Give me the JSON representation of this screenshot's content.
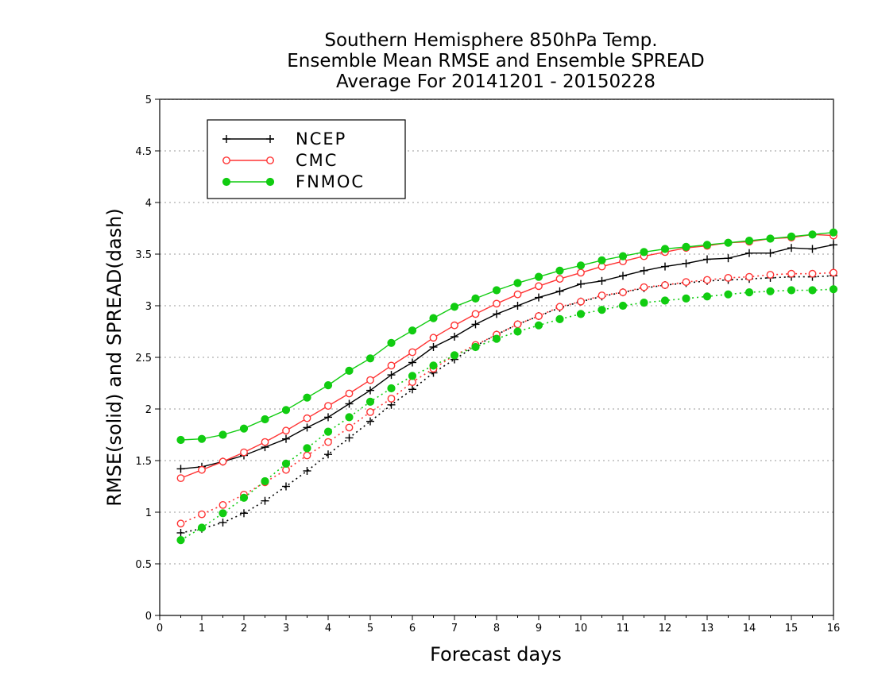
{
  "chart_data": {
    "type": "line",
    "title": [
      "Southern Hemisphere 850hPa Temp.",
      "Ensemble Mean RMSE and Ensemble SPREAD",
      "Average For 20141201 - 20150228"
    ],
    "xlabel": "Forecast days",
    "ylabel": "RMSE(solid) and SPREAD(dash)",
    "xlim": [
      0,
      16
    ],
    "ylim": [
      0,
      5
    ],
    "xticks": [
      "0",
      "1",
      "2",
      "3",
      "4",
      "5",
      "6",
      "7",
      "8",
      "9",
      "10",
      "11",
      "12",
      "13",
      "14",
      "15",
      "16"
    ],
    "yticks": [
      "0",
      "0.5",
      "1",
      "1.5",
      "2",
      "2.5",
      "3",
      "3.5",
      "4",
      "4.5",
      "5"
    ],
    "grid": "horizontal dotted",
    "legend_position": "top-left",
    "x": [
      0.5,
      1,
      1.5,
      2,
      2.5,
      3,
      3.5,
      4,
      4.5,
      5,
      5.5,
      6,
      6.5,
      7,
      7.5,
      8,
      8.5,
      9,
      9.5,
      10,
      10.5,
      11,
      11.5,
      12,
      12.5,
      13,
      13.5,
      14,
      14.5,
      15,
      15.5,
      16
    ],
    "series": [
      {
        "name": "NCEP",
        "color": "#000000",
        "marker": "plus",
        "rmse": [
          1.42,
          1.44,
          1.49,
          1.55,
          1.63,
          1.71,
          1.82,
          1.92,
          2.05,
          2.18,
          2.33,
          2.45,
          2.6,
          2.7,
          2.82,
          2.92,
          3.0,
          3.08,
          3.14,
          3.21,
          3.24,
          3.29,
          3.34,
          3.38,
          3.41,
          3.45,
          3.46,
          3.51,
          3.51,
          3.56,
          3.55,
          3.59
        ],
        "spread": [
          0.8,
          0.84,
          0.9,
          0.99,
          1.11,
          1.25,
          1.4,
          1.56,
          1.72,
          1.88,
          2.04,
          2.19,
          2.35,
          2.48,
          2.61,
          2.72,
          2.82,
          2.9,
          2.98,
          3.04,
          3.09,
          3.13,
          3.17,
          3.2,
          3.22,
          3.24,
          3.25,
          3.26,
          3.27,
          3.28,
          3.28,
          3.29
        ]
      },
      {
        "name": "CMC",
        "color": "#ff3333",
        "marker": "open-circle",
        "rmse": [
          1.33,
          1.41,
          1.49,
          1.58,
          1.68,
          1.79,
          1.91,
          2.03,
          2.15,
          2.28,
          2.42,
          2.55,
          2.69,
          2.81,
          2.92,
          3.02,
          3.11,
          3.19,
          3.26,
          3.32,
          3.38,
          3.43,
          3.48,
          3.52,
          3.56,
          3.58,
          3.61,
          3.62,
          3.65,
          3.66,
          3.69,
          3.68
        ],
        "spread": [
          0.89,
          0.98,
          1.07,
          1.17,
          1.29,
          1.41,
          1.55,
          1.68,
          1.82,
          1.97,
          2.1,
          2.26,
          2.39,
          2.52,
          2.62,
          2.72,
          2.82,
          2.9,
          2.99,
          3.04,
          3.1,
          3.13,
          3.18,
          3.2,
          3.23,
          3.25,
          3.27,
          3.28,
          3.3,
          3.31,
          3.31,
          3.32
        ]
      },
      {
        "name": "FNMOC",
        "color": "#11cc11",
        "marker": "filled-circle",
        "rmse": [
          1.7,
          1.71,
          1.75,
          1.81,
          1.9,
          1.99,
          2.11,
          2.23,
          2.37,
          2.49,
          2.64,
          2.76,
          2.88,
          2.99,
          3.07,
          3.15,
          3.22,
          3.28,
          3.34,
          3.39,
          3.44,
          3.48,
          3.52,
          3.55,
          3.57,
          3.59,
          3.61,
          3.63,
          3.65,
          3.67,
          3.69,
          3.71
        ],
        "spread": [
          0.73,
          0.85,
          0.99,
          1.14,
          1.3,
          1.47,
          1.62,
          1.78,
          1.92,
          2.07,
          2.2,
          2.32,
          2.42,
          2.52,
          2.6,
          2.68,
          2.75,
          2.81,
          2.87,
          2.92,
          2.96,
          3.0,
          3.03,
          3.05,
          3.07,
          3.09,
          3.11,
          3.13,
          3.14,
          3.15,
          3.15,
          3.16
        ]
      }
    ]
  }
}
